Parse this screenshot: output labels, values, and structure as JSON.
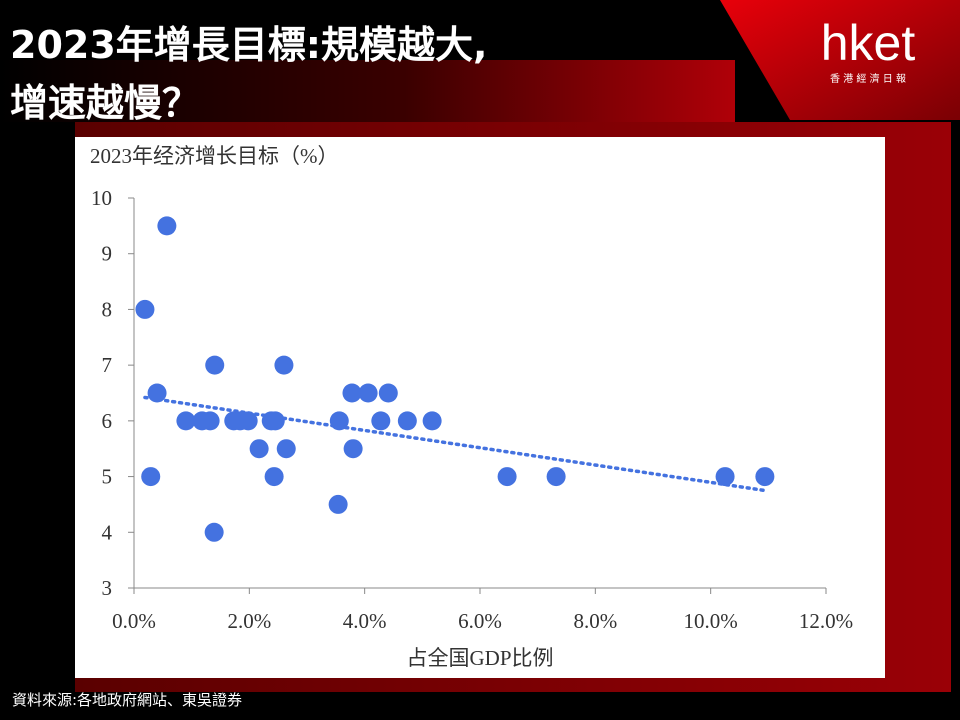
{
  "header": {
    "title_line1": "2023年增長目標:規模越大,",
    "title_line2": "增速越慢？",
    "logo": "hket",
    "logo_sub": "香 港 經 濟 日 報"
  },
  "source": "資料來源:各地政府網站、東吳證券",
  "chart_data": {
    "type": "scatter",
    "y_label": "2023年经济增长目标（%）",
    "x_label": "占全国GDP比例",
    "color": "#4472e0",
    "x": [
      0.57,
      0.19,
      0.4,
      0.29,
      0.9,
      1.18,
      1.32,
      1.4,
      1.39,
      1.73,
      1.84,
      1.98,
      2.17,
      2.38,
      2.45,
      2.43,
      2.6,
      2.64,
      3.54,
      3.56,
      3.78,
      3.8,
      4.06,
      4.28,
      4.41,
      4.74,
      5.17,
      6.47,
      7.32,
      10.25,
      10.94
    ],
    "y": [
      9.5,
      8,
      6.5,
      5,
      6,
      6,
      6,
      7,
      4,
      6,
      6,
      6,
      5.5,
      6,
      6,
      5,
      7,
      5.5,
      4.5,
      6,
      6.5,
      5.5,
      6.5,
      6,
      6.5,
      6,
      6,
      5,
      5,
      5,
      5
    ],
    "trendline": {
      "x": [
        0.19,
        10.94
      ],
      "y": [
        6.42,
        4.75
      ]
    },
    "xlim": [
      0,
      12
    ],
    "ylim": [
      3,
      10
    ],
    "xticks": [
      {
        "value": 0,
        "label": "0.0%"
      },
      {
        "value": 2,
        "label": "2.0%"
      },
      {
        "value": 4,
        "label": "4.0%"
      },
      {
        "value": 6,
        "label": "6.0%"
      },
      {
        "value": 8,
        "label": "8.0%"
      },
      {
        "value": 10,
        "label": "10.0%"
      },
      {
        "value": 12,
        "label": "12.0%"
      }
    ],
    "yticks": [
      3,
      4,
      5,
      6,
      7,
      8,
      9,
      10
    ],
    "grid": false
  }
}
